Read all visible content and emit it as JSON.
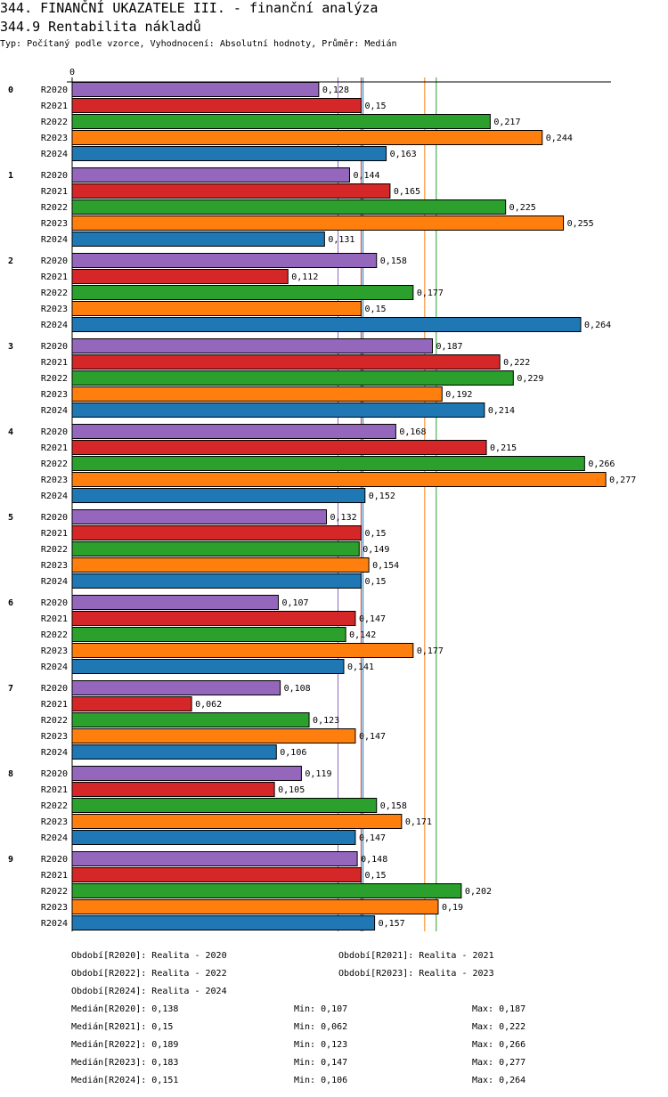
{
  "header": {
    "title": "344. FINANČNÍ UKAZATELE III. - finanční analýza",
    "subtitle": "344.9 Rentabilita nákladů",
    "info": "Typ: Počítaný podle vzorce, Vyhodnocení: Absolutní hodnoty, Průměr: Medián"
  },
  "chart_data": {
    "type": "bar",
    "orientation": "horizontal",
    "axis_zero_label": "0",
    "categories": [
      "0",
      "1",
      "2",
      "3",
      "4",
      "5",
      "6",
      "7",
      "8",
      "9"
    ],
    "series": [
      {
        "name": "R2020",
        "color": "#9467bd",
        "values": [
          0.128,
          0.144,
          0.158,
          0.187,
          0.168,
          0.132,
          0.107,
          0.108,
          0.119,
          0.148
        ],
        "median": 0.138
      },
      {
        "name": "R2021",
        "color": "#d62728",
        "values": [
          0.15,
          0.165,
          0.112,
          0.222,
          0.215,
          0.15,
          0.147,
          0.062,
          0.105,
          0.15
        ],
        "median": 0.15
      },
      {
        "name": "R2022",
        "color": "#2ca02c",
        "values": [
          0.217,
          0.225,
          0.177,
          0.229,
          0.266,
          0.149,
          0.142,
          0.123,
          0.158,
          0.202
        ],
        "median": 0.189
      },
      {
        "name": "R2023",
        "color": "#ff7f0e",
        "values": [
          0.244,
          0.255,
          0.15,
          0.192,
          0.277,
          0.154,
          0.177,
          0.147,
          0.171,
          0.19
        ],
        "median": 0.183
      },
      {
        "name": "R2024",
        "color": "#1f77b4",
        "values": [
          0.163,
          0.131,
          0.264,
          0.214,
          0.152,
          0.15,
          0.141,
          0.106,
          0.147,
          0.157
        ],
        "median": 0.151
      }
    ],
    "value_labels": "decimal-comma",
    "median_lines": true
  },
  "legend": {
    "periods": [
      "Období[R2020]: Realita - 2020",
      "Období[R2021]: Realita - 2021",
      "Období[R2022]: Realita - 2022",
      "Období[R2023]: Realita - 2023",
      "Období[R2024]: Realita - 2024"
    ],
    "stats": [
      {
        "median": "Medián[R2020]: 0,138",
        "min": "Min: 0,107",
        "max": "Max: 0,187"
      },
      {
        "median": "Medián[R2021]: 0,15",
        "min": "Min: 0,062",
        "max": "Max: 0,222"
      },
      {
        "median": "Medián[R2022]: 0,189",
        "min": "Min: 0,123",
        "max": "Max: 0,266"
      },
      {
        "median": "Medián[R2023]: 0,183",
        "min": "Min: 0,147",
        "max": "Max: 0,277"
      },
      {
        "median": "Medián[R2024]: 0,151",
        "min": "Min: 0,106",
        "max": "Max: 0,264"
      }
    ]
  }
}
